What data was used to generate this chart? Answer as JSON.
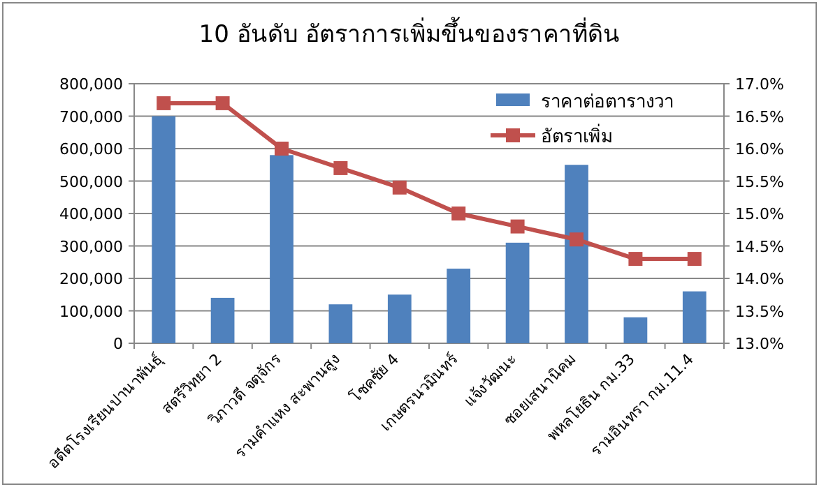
{
  "chart_data": {
    "type": "bar",
    "title": "10 อันดับ อัตราการเพิ่มขึ้นของราคาที่ดิน",
    "categories": [
      "อดีตโรงเรียนปานาพันธุ์",
      "สตรีวิทยา 2",
      "วิภาวดี จตุจักร",
      "รามคำแหง สะพานสูง",
      "โชคชัย 4",
      "เกษตรนวมินทร์",
      "แจ้งวัฒนะ",
      "ซอยเสนานิคม",
      "พหลโยธิน กม.33",
      "รามอินทรา กม.11.4"
    ],
    "series": [
      {
        "name": "ราคาต่อตารางวา",
        "color": "#4f81bd",
        "values": [
          700000,
          140000,
          580000,
          120000,
          150000,
          230000,
          310000,
          550000,
          80000,
          160000
        ]
      },
      {
        "name": "อัตราเพิ่ม",
        "type": "line",
        "axis": "y2",
        "marker": "square",
        "line_style": "solid",
        "color": "#c0504d",
        "values": [
          16.7,
          16.7,
          16.0,
          15.7,
          15.4,
          15.0,
          14.8,
          14.6,
          14.3,
          14.3
        ]
      }
    ],
    "ylim": [
      0,
      800000
    ],
    "yticks": [
      0,
      {
        "value": 100000,
        "label": "100,000"
      },
      {
        "value": 200000,
        "label": "200,000"
      },
      {
        "value": 300000,
        "label": "300,000"
      },
      {
        "value": 400000,
        "label": "400,000"
      },
      {
        "value": 500000,
        "label": "500,000"
      },
      {
        "value": 600000,
        "label": "600,000"
      },
      {
        "value": 700000,
        "label": "700,000"
      },
      {
        "value": 800000,
        "label": "800,000"
      }
    ],
    "y2lim": [
      13,
      17
    ],
    "y2ticks": [
      {
        "value": 13,
        "label": "13.0%"
      },
      {
        "value": 13.5,
        "label": "13.5%"
      },
      {
        "value": 14,
        "label": "14.0%"
      },
      {
        "value": 14.5,
        "label": "14.5%"
      },
      {
        "value": 15,
        "label": "15.0%"
      },
      {
        "value": 15.5,
        "label": "15.5%"
      },
      {
        "value": 16,
        "label": "16.0%"
      },
      {
        "value": 16.5,
        "label": "16.5%"
      },
      {
        "value": 17,
        "label": "17.0%"
      }
    ],
    "grid": "y",
    "legend": "top right"
  }
}
